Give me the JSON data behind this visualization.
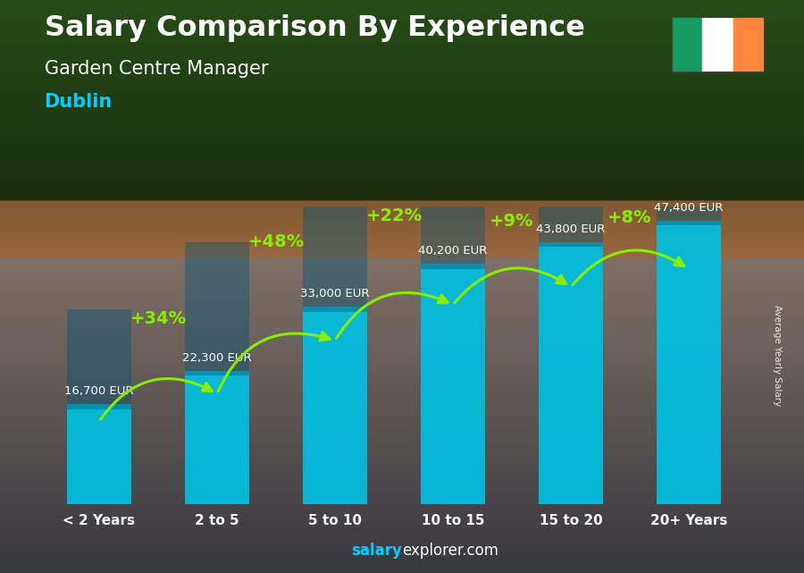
{
  "title": "Salary Comparison By Experience",
  "subtitle": "Garden Centre Manager",
  "city": "Dublin",
  "categories": [
    "< 2 Years",
    "2 to 5",
    "5 to 10",
    "10 to 15",
    "15 to 20",
    "20+ Years"
  ],
  "values": [
    16700,
    22300,
    33000,
    40200,
    43800,
    47400
  ],
  "labels": [
    "16,700 EUR",
    "22,300 EUR",
    "33,000 EUR",
    "40,200 EUR",
    "43,800 EUR",
    "47,400 EUR"
  ],
  "pct_changes": [
    "+34%",
    "+48%",
    "+22%",
    "+9%",
    "+8%"
  ],
  "bar_color": "#00BFDF",
  "pct_color": "#88EE00",
  "label_color": "#FFFFFF",
  "title_color": "#FFFFFF",
  "subtitle_color": "#FFFFFF",
  "city_color": "#00CFFF",
  "footer_salary_color": "#00CFFF",
  "footer_explorer_color": "#FFFFFF",
  "side_label": "Average Yearly Salary",
  "footer_bold": "salary",
  "footer_normal": "explorer.com",
  "figsize": [
    9.0,
    6.41
  ],
  "dpi": 100
}
